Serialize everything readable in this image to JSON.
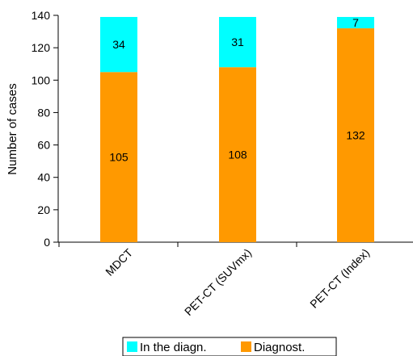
{
  "chart_data": {
    "type": "bar",
    "stacked": true,
    "categories": [
      "MDCT",
      "PET-CT (SUVmx)",
      "PET-CT (Index)"
    ],
    "series": [
      {
        "name": "Diagnost.",
        "values": [
          105,
          108,
          132
        ],
        "color": "#FF9900"
      },
      {
        "name": "In the diagn.",
        "values": [
          34,
          31,
          7
        ],
        "color": "#00FFFF"
      }
    ],
    "ylabel": "Number of cases",
    "xlabel": "",
    "ylim": [
      0,
      140
    ],
    "yticks": [
      0,
      20,
      40,
      60,
      80,
      100,
      120,
      140
    ],
    "tick_labels_rotated": true,
    "legend_position": "bottom-center",
    "legend_order": [
      "In the diagn.",
      "Diagnost."
    ],
    "grid": false
  }
}
